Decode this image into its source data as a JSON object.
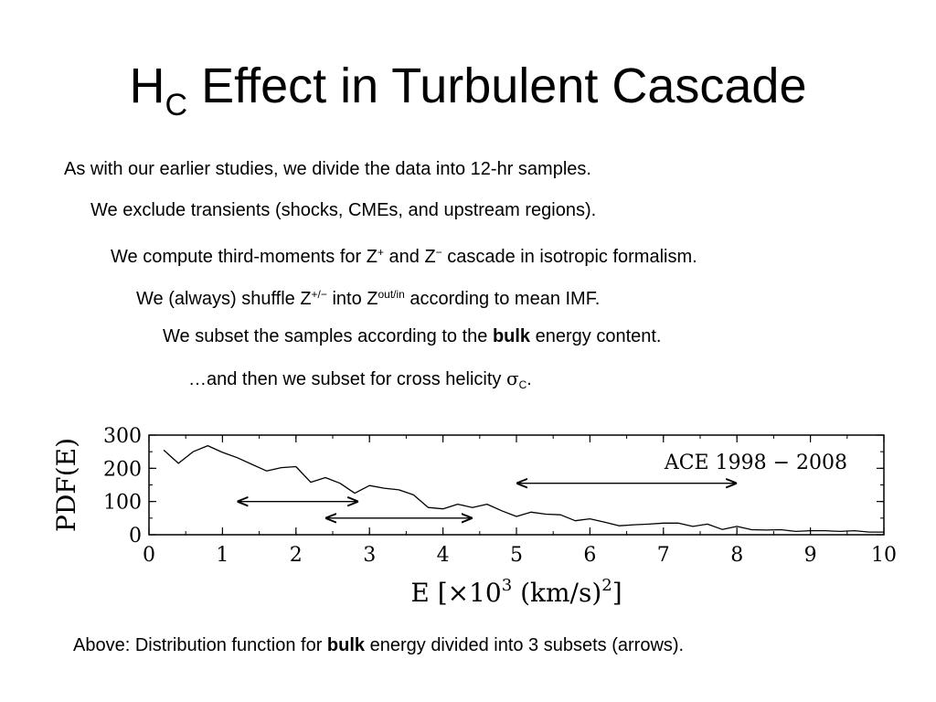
{
  "title": {
    "main": "H",
    "sub": "C",
    "rest": " Effect in Turbulent Cascade"
  },
  "bullets": [
    {
      "text": "As with our earlier studies, we divide the data into 12-hr samples."
    },
    {
      "text": "We exclude transients (shocks, CMEs, and upstream regions)."
    },
    {
      "pre": "We compute third-moments for Z",
      "sup1": "+",
      "mid": " and Z",
      "sup2": "−",
      "post": " cascade in isotropic formalism."
    },
    {
      "pre": "We (always) shuffle Z",
      "sup1": "+/−",
      "mid": " into Z",
      "sup2": "out/in",
      "post": " according to mean IMF."
    },
    {
      "pre": "We subset the samples according to the ",
      "bold": "bulk",
      "post": " energy content."
    },
    {
      "pre": "…and then we subset for cross helicity ",
      "sym": "σ",
      "sub": "C",
      "post": "."
    }
  ],
  "caption": {
    "pre": "Above:  Distribution function for ",
    "bold": "bulk",
    "post": " energy divided into 3 subsets (arrows)."
  },
  "chart_data": {
    "type": "line",
    "ylabel": "PDF(E)",
    "xlabel_parts": {
      "pre": "E [×10",
      "exp1": "3",
      "mid": " (km/s)",
      "exp2": "2",
      "post": "]"
    },
    "annotation": "ACE 1998 − 2008",
    "xlim": [
      0,
      10
    ],
    "ylim": [
      0,
      300
    ],
    "xticks": [
      0,
      1,
      2,
      3,
      4,
      5,
      6,
      7,
      8,
      9,
      10
    ],
    "yticks": [
      0,
      100,
      200,
      300
    ],
    "color": "#000000",
    "series": [
      {
        "x": [
          0.2,
          0.4,
          0.6,
          0.8,
          1.0,
          1.2,
          1.4,
          1.6,
          1.8,
          2.0,
          2.2,
          2.4,
          2.6,
          2.8,
          3.0,
          3.2,
          3.4,
          3.6,
          3.8,
          4.0,
          4.2,
          4.4,
          4.6,
          4.8,
          5.0,
          5.2,
          5.4,
          5.6,
          5.8,
          6.0,
          6.2,
          6.4,
          6.6,
          6.8,
          7.0,
          7.2,
          7.4,
          7.6,
          7.8,
          8.0,
          8.2,
          8.4,
          8.6,
          8.8,
          9.0,
          9.2,
          9.4,
          9.6,
          9.8,
          10.0
        ],
        "y": [
          255,
          215,
          250,
          268,
          248,
          232,
          212,
          192,
          202,
          205,
          158,
          172,
          155,
          125,
          148,
          140,
          135,
          120,
          82,
          78,
          92,
          82,
          92,
          72,
          55,
          68,
          62,
          60,
          42,
          48,
          38,
          27,
          30,
          32,
          35,
          35,
          25,
          32,
          16,
          25,
          15,
          14,
          15,
          10,
          12,
          12,
          10,
          12,
          8,
          8
        ]
      }
    ],
    "arrows": [
      {
        "from": 1.2,
        "to": 2.85,
        "y": 100
      },
      {
        "from": 2.4,
        "to": 4.4,
        "y": 50
      },
      {
        "from": 5.0,
        "to": 8.0,
        "y": 155
      }
    ]
  }
}
